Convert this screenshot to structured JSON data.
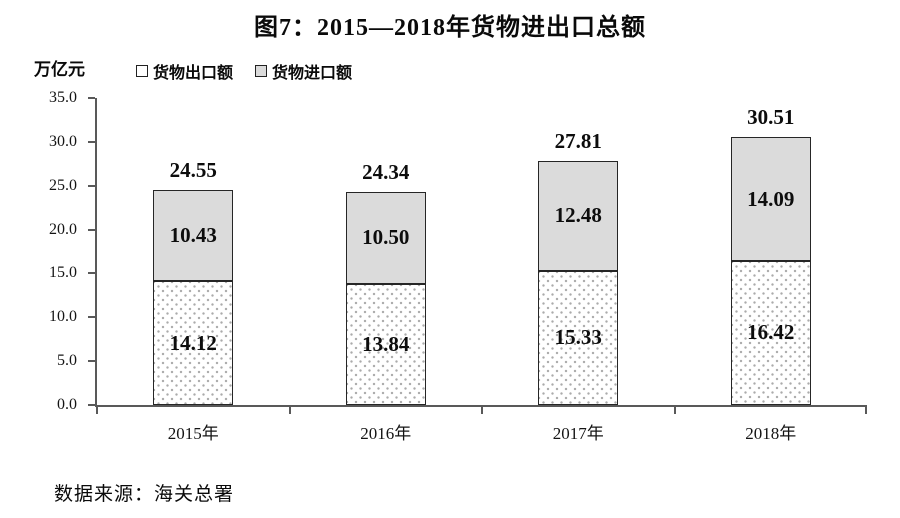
{
  "title": "图7：2015—2018年货物进出口总额",
  "axis_unit": "万亿元",
  "legend": [
    {
      "label": "货物出口额",
      "key": "export"
    },
    {
      "label": "货物进口额",
      "key": "import"
    }
  ],
  "source": "数据来源：海关总署",
  "colors": {
    "import_fill": "#dbdbdb",
    "export_fill": "#ffffff",
    "export_dot": "#ababab",
    "bar_border": "#262626",
    "axis": "#595959",
    "text": "#0a0a0a"
  },
  "chart_data": {
    "type": "bar",
    "stacked": true,
    "title": "图7：2015—2018年货物进出口总额",
    "ylabel": "万亿元",
    "xlabel": "",
    "categories": [
      "2015年",
      "2016年",
      "2017年",
      "2018年"
    ],
    "series": [
      {
        "name": "货物出口额",
        "values": [
          14.12,
          13.84,
          15.33,
          16.42
        ],
        "labels": [
          "14.12",
          "13.84",
          "15.33",
          "16.42"
        ]
      },
      {
        "name": "货物进口额",
        "values": [
          10.43,
          10.5,
          12.48,
          14.09
        ],
        "labels": [
          "10.43",
          "10.50",
          "12.48",
          "14.09"
        ]
      }
    ],
    "totals": [
      24.55,
      24.34,
      27.81,
      30.51
    ],
    "totals_labels": [
      "24.55",
      "24.34",
      "27.81",
      "30.51"
    ],
    "ylim": [
      0,
      35
    ],
    "ytick_step": 5,
    "yticks": [
      "35.0",
      "30.0",
      "25.0",
      "20.0",
      "15.0",
      "10.0",
      "5.0",
      "0.0"
    ],
    "grid": false,
    "legend_position": "top-left"
  }
}
